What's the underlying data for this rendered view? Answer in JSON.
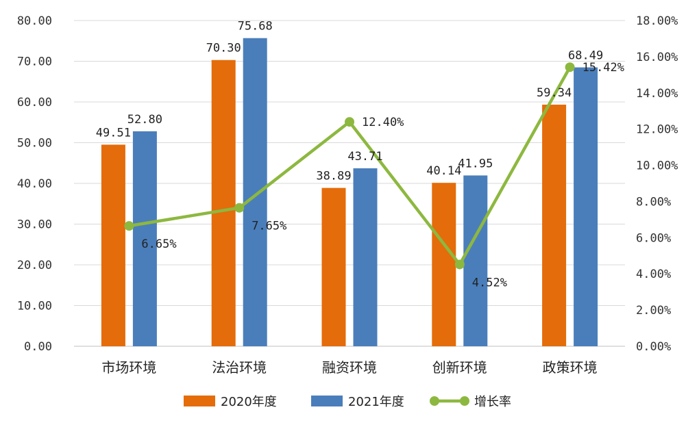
{
  "chart_data": {
    "type": "bar",
    "categories": [
      "市场环境",
      "法治环境",
      "融资环境",
      "创新环境",
      "政策环境"
    ],
    "series": [
      {
        "name": "2020年度",
        "kind": "bar",
        "axis": "left",
        "color": "#E46C0A",
        "values": [
          49.51,
          70.3,
          38.89,
          40.14,
          59.34
        ],
        "labels": [
          "49.51",
          "70.30",
          "38.89",
          "40.14",
          "59.34"
        ]
      },
      {
        "name": "2021年度",
        "kind": "bar",
        "axis": "left",
        "color": "#4A7EBB",
        "values": [
          52.8,
          75.68,
          43.71,
          41.95,
          68.49
        ],
        "labels": [
          "52.80",
          "75.68",
          "43.71",
          "41.95",
          "68.49"
        ]
      },
      {
        "name": "增长率",
        "kind": "line",
        "axis": "right",
        "color": "#8DB83F",
        "values": [
          6.65,
          7.65,
          12.4,
          4.52,
          15.42
        ],
        "labels": [
          "6.65%",
          "7.65%",
          "12.40%",
          "4.52%",
          "15.42%"
        ]
      }
    ],
    "y_left": {
      "min": 0,
      "max": 80,
      "ticks": [
        "0.00",
        "10.00",
        "20.00",
        "30.00",
        "40.00",
        "50.00",
        "60.00",
        "70.00",
        "80.00"
      ]
    },
    "y_right": {
      "min": 0,
      "max": 18,
      "ticks": [
        "0.00%",
        "2.00%",
        "4.00%",
        "6.00%",
        "8.00%",
        "10.00%",
        "12.00%",
        "14.00%",
        "16.00%",
        "18.00%"
      ]
    },
    "grid": true,
    "legend_position": "bottom"
  }
}
